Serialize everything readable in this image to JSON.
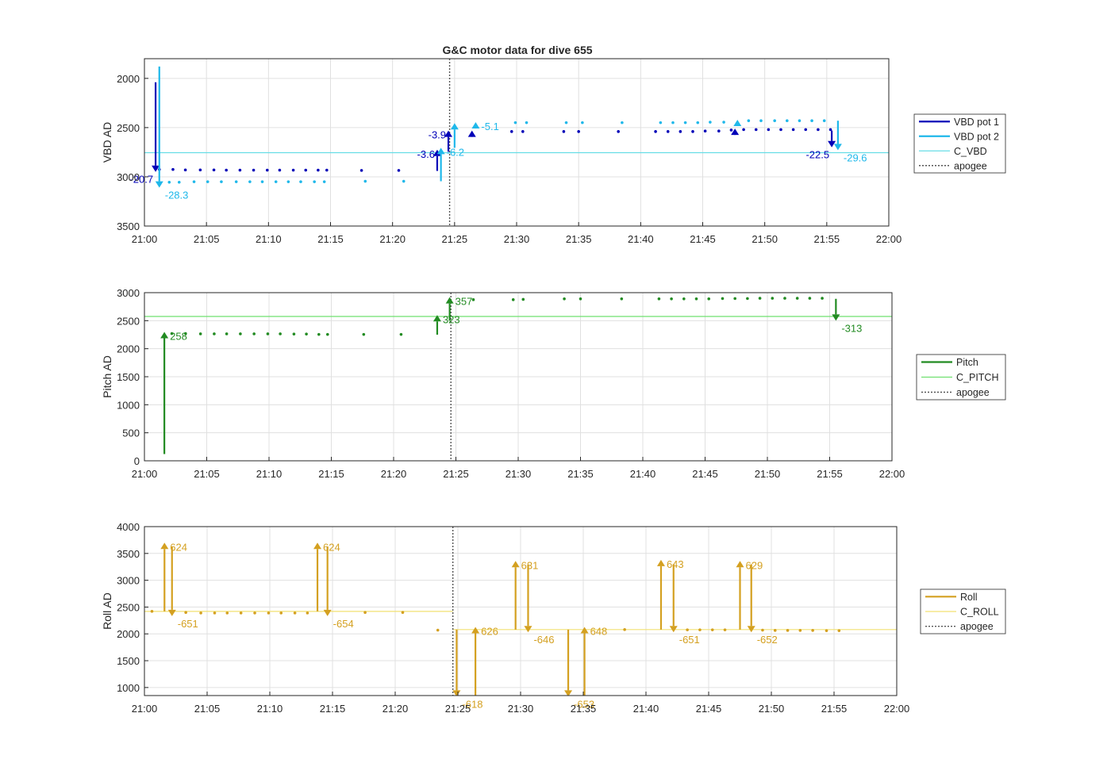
{
  "title": "G&C motor data for dive 655",
  "colors": {
    "vbd_pot1": "#0000b8",
    "vbd_pot2": "#1fb8ea",
    "c_vbd": "#66dde6",
    "pitch": "#228b22",
    "c_pitch": "#6fe06f",
    "roll": "#d4a020",
    "c_roll": "#f2e070",
    "apogee": "#555555",
    "grid": "#e0e0e0",
    "axis": "#262626"
  },
  "chart_data": [
    {
      "type": "scatter",
      "ylabel": "VBD AD",
      "xlim": [
        "21:00",
        "22:00"
      ],
      "ylim": [
        3500,
        1800
      ],
      "y_reversed": true,
      "xticks": [
        "21:00",
        "21:05",
        "21:10",
        "21:15",
        "21:20",
        "21:25",
        "21:30",
        "21:35",
        "21:40",
        "21:45",
        "21:50",
        "21:55",
        "22:00"
      ],
      "yticks": [
        2000,
        2500,
        3000,
        3500
      ],
      "grid": true,
      "legend_placement": "outside-right",
      "legend": [
        "VBD pot 1",
        "VBD pot 2",
        "C_VBD",
        "apogee"
      ],
      "apogee_time": "21:24.6",
      "reference_lines": [
        {
          "name": "C_VBD",
          "value": 2755
        }
      ],
      "series": [
        {
          "name": "VBD pot 1",
          "color_key": "vbd_pot1",
          "points": [
            [
              "21:01.2",
              2925
            ],
            [
              "21:02.3",
              2925
            ],
            [
              "21:03.3",
              2930
            ],
            [
              "21:04.5",
              2930
            ],
            [
              "21:05.6",
              2930
            ],
            [
              "21:06.6",
              2932
            ],
            [
              "21:07.7",
              2932
            ],
            [
              "21:08.8",
              2932
            ],
            [
              "21:09.9",
              2932
            ],
            [
              "21:10.9",
              2932
            ],
            [
              "21:12.0",
              2932
            ],
            [
              "21:13.0",
              2932
            ],
            [
              "21:14.0",
              2932
            ],
            [
              "21:14.7",
              2932
            ],
            [
              "21:17.5",
              2935
            ],
            [
              "21:20.5",
              2935
            ],
            [
              "21:29.6",
              2540
            ],
            [
              "21:30.5",
              2540
            ],
            [
              "21:33.8",
              2540
            ],
            [
              "21:35.0",
              2540
            ],
            [
              "21:38.2",
              2540
            ],
            [
              "21:41.2",
              2540
            ],
            [
              "21:42.2",
              2540
            ],
            [
              "21:43.2",
              2540
            ],
            [
              "21:44.2",
              2540
            ],
            [
              "21:45.2",
              2535
            ],
            [
              "21:46.3",
              2535
            ],
            [
              "21:47.3",
              2525
            ],
            [
              "21:48.3",
              2520
            ],
            [
              "21:49.3",
              2520
            ],
            [
              "21:50.3",
              2520
            ],
            [
              "21:51.3",
              2520
            ],
            [
              "21:52.3",
              2520
            ],
            [
              "21:53.3",
              2520
            ],
            [
              "21:54.3",
              2520
            ],
            [
              "21:55.3",
              2520
            ]
          ],
          "moves": [
            {
              "t": "21:00.9",
              "from": 2040,
              "to": 2950,
              "label": "-20.7"
            },
            {
              "t": "21:23.6",
              "from": 2940,
              "to": 2725,
              "label": "-3.6"
            },
            {
              "t": "21:24.5",
              "from": 2745,
              "to": 2530,
              "label": "-3.9"
            },
            {
              "t": "21:26.4",
              "from": 2590,
              "to": 2530,
              "label": ""
            },
            {
              "t": "21:47.6",
              "from": 2560,
              "to": 2510,
              "label": ""
            },
            {
              "t": "21:55.4",
              "from": 2530,
              "to": 2700,
              "label": "-22.5"
            }
          ]
        },
        {
          "name": "VBD pot 2",
          "color_key": "vbd_pot2",
          "points": [
            [
              "21:02.0",
              3055
            ],
            [
              "21:02.8",
              3055
            ],
            [
              "21:04.0",
              3050
            ],
            [
              "21:05.1",
              3050
            ],
            [
              "21:06.2",
              3050
            ],
            [
              "21:07.4",
              3050
            ],
            [
              "21:08.5",
              3050
            ],
            [
              "21:09.5",
              3050
            ],
            [
              "21:10.6",
              3050
            ],
            [
              "21:11.6",
              3050
            ],
            [
              "21:12.6",
              3050
            ],
            [
              "21:13.7",
              3050
            ],
            [
              "21:14.5",
              3050
            ],
            [
              "21:17.8",
              3045
            ],
            [
              "21:20.9",
              3045
            ],
            [
              "21:29.9",
              2450
            ],
            [
              "21:30.8",
              2450
            ],
            [
              "21:34.0",
              2450
            ],
            [
              "21:35.3",
              2450
            ],
            [
              "21:38.5",
              2450
            ],
            [
              "21:41.6",
              2450
            ],
            [
              "21:42.6",
              2450
            ],
            [
              "21:43.6",
              2450
            ],
            [
              "21:44.6",
              2450
            ],
            [
              "21:45.6",
              2445
            ],
            [
              "21:46.7",
              2445
            ],
            [
              "21:48.7",
              2430
            ],
            [
              "21:49.7",
              2430
            ],
            [
              "21:50.8",
              2430
            ],
            [
              "21:51.8",
              2430
            ],
            [
              "21:52.8",
              2430
            ],
            [
              "21:53.8",
              2430
            ],
            [
              "21:54.8",
              2430
            ]
          ],
          "moves": [
            {
              "t": "21:01.2",
              "from": 1880,
              "to": 3110,
              "label": "-28.3"
            },
            {
              "t": "21:23.9",
              "from": 3045,
              "to": 2705,
              "label": "-6.2"
            },
            {
              "t": "21:25.0",
              "from": 2705,
              "to": 2455,
              "label": ""
            },
            {
              "t": "21:26.7",
              "from": 2490,
              "to": 2445,
              "label": "-5.1"
            },
            {
              "t": "21:47.8",
              "from": 2450,
              "to": 2420,
              "label": ""
            },
            {
              "t": "21:55.9",
              "from": 2430,
              "to": 2730,
              "label": "-29.6"
            }
          ]
        }
      ]
    },
    {
      "type": "scatter",
      "ylabel": "Pitch AD",
      "xlim": [
        "21:00",
        "22:00"
      ],
      "ylim": [
        0,
        3000
      ],
      "xticks": [
        "21:00",
        "21:05",
        "21:10",
        "21:15",
        "21:20",
        "21:25",
        "21:30",
        "21:35",
        "21:40",
        "21:45",
        "21:50",
        "21:55",
        "22:00"
      ],
      "yticks": [
        0,
        500,
        1000,
        1500,
        2000,
        2500,
        3000
      ],
      "grid": true,
      "legend_placement": "outside-right",
      "legend": [
        "Pitch",
        "C_PITCH",
        "apogee"
      ],
      "apogee_time": "21:24.6",
      "reference_lines": [
        {
          "name": "C_PITCH",
          "value": 2575
        }
      ],
      "series": [
        {
          "name": "Pitch",
          "color_key": "pitch",
          "points": [
            [
              "21:02.2",
              2270
            ],
            [
              "21:03.3",
              2270
            ],
            [
              "21:04.5",
              2265
            ],
            [
              "21:05.6",
              2265
            ],
            [
              "21:06.6",
              2265
            ],
            [
              "21:07.7",
              2265
            ],
            [
              "21:08.8",
              2265
            ],
            [
              "21:09.9",
              2265
            ],
            [
              "21:10.9",
              2265
            ],
            [
              "21:12.0",
              2262
            ],
            [
              "21:13.0",
              2262
            ],
            [
              "21:14.0",
              2255
            ],
            [
              "21:14.7",
              2255
            ],
            [
              "21:17.6",
              2255
            ],
            [
              "21:20.6",
              2255
            ],
            [
              "21:26.4",
              2875
            ],
            [
              "21:29.6",
              2875
            ],
            [
              "21:30.4",
              2880
            ],
            [
              "21:33.7",
              2890
            ],
            [
              "21:35.0",
              2890
            ],
            [
              "21:38.3",
              2890
            ],
            [
              "21:41.3",
              2890
            ],
            [
              "21:42.3",
              2890
            ],
            [
              "21:43.3",
              2890
            ],
            [
              "21:44.3",
              2890
            ],
            [
              "21:45.3",
              2890
            ],
            [
              "21:46.4",
              2895
            ],
            [
              "21:47.4",
              2895
            ],
            [
              "21:48.4",
              2895
            ],
            [
              "21:49.4",
              2900
            ],
            [
              "21:50.4",
              2900
            ],
            [
              "21:51.4",
              2900
            ],
            [
              "21:52.4",
              2900
            ],
            [
              "21:53.4",
              2900
            ],
            [
              "21:54.4",
              2900
            ]
          ],
          "moves": [
            {
              "t": "21:01.6",
              "from": 120,
              "to": 2300,
              "label": "258"
            },
            {
              "t": "21:23.5",
              "from": 2250,
              "to": 2600,
              "label": "323"
            },
            {
              "t": "21:24.5",
              "from": 2500,
              "to": 2920,
              "label": "357"
            },
            {
              "t": "21:55.5",
              "from": 2890,
              "to": 2500,
              "label": "-313"
            }
          ]
        }
      ]
    },
    {
      "type": "scatter",
      "ylabel": "Roll AD",
      "xlim": [
        "21:00",
        "22:00"
      ],
      "ylim": [
        850,
        4000
      ],
      "xticks": [
        "21:00",
        "21:05",
        "21:10",
        "21:15",
        "21:20",
        "21:25",
        "21:30",
        "21:35",
        "21:40",
        "21:45",
        "21:50",
        "21:55",
        "22:00"
      ],
      "yticks": [
        1000,
        1500,
        2000,
        2500,
        3000,
        3500,
        4000
      ],
      "grid": true,
      "legend_placement": "outside-right",
      "legend": [
        "Roll",
        "C_ROLL",
        "apogee"
      ],
      "apogee_time": "21:24.6",
      "reference_lines": [
        {
          "name": "C_ROLL",
          "value": 2420,
          "from": "21:00",
          "to": "21:24.6"
        },
        {
          "name": "C_ROLL",
          "value": 2080,
          "from": "21:24.6",
          "to": "22:00"
        }
      ],
      "series": [
        {
          "name": "Roll",
          "color_key": "roll",
          "points": [
            [
              "21:00.6",
              2420
            ],
            [
              "21:03.3",
              2400
            ],
            [
              "21:04.5",
              2390
            ],
            [
              "21:05.6",
              2390
            ],
            [
              "21:06.6",
              2390
            ],
            [
              "21:07.7",
              2390
            ],
            [
              "21:08.8",
              2390
            ],
            [
              "21:09.9",
              2390
            ],
            [
              "21:10.9",
              2390
            ],
            [
              "21:12.0",
              2390
            ],
            [
              "21:13.0",
              2390
            ],
            [
              "21:17.6",
              2400
            ],
            [
              "21:20.6",
              2400
            ],
            [
              "21:23.4",
              2070
            ],
            [
              "21:38.3",
              2080
            ],
            [
              "21:43.3",
              2075
            ],
            [
              "21:44.3",
              2075
            ],
            [
              "21:45.3",
              2075
            ],
            [
              "21:46.3",
              2075
            ],
            [
              "21:49.3",
              2070
            ],
            [
              "21:50.3",
              2065
            ],
            [
              "21:51.3",
              2065
            ],
            [
              "21:52.3",
              2065
            ],
            [
              "21:53.3",
              2065
            ],
            [
              "21:54.4",
              2060
            ],
            [
              "21:55.4",
              2060
            ]
          ],
          "moves": [
            {
              "t": "21:01.6",
              "from": 2420,
              "to": 3700,
              "label": "624"
            },
            {
              "t": "21:02.2",
              "from": 3630,
              "to": 2330,
              "label": "-651"
            },
            {
              "t": "21:13.8",
              "from": 2420,
              "to": 3700,
              "label": "624"
            },
            {
              "t": "21:14.6",
              "from": 3630,
              "to": 2330,
              "label": "-654"
            },
            {
              "t": "21:24.9",
              "from": 2080,
              "to": 830,
              "label": "-618"
            },
            {
              "t": "21:26.4",
              "from": 830,
              "to": 2130,
              "label": "626"
            },
            {
              "t": "21:29.6",
              "from": 2080,
              "to": 3360,
              "label": "631"
            },
            {
              "t": "21:30.6",
              "from": 3300,
              "to": 2030,
              "label": "-646"
            },
            {
              "t": "21:33.8",
              "from": 2080,
              "to": 830,
              "label": "-653"
            },
            {
              "t": "21:35.1",
              "from": 830,
              "to": 2130,
              "label": "648"
            },
            {
              "t": "21:41.2",
              "from": 2080,
              "to": 3380,
              "label": "643"
            },
            {
              "t": "21:42.2",
              "from": 3300,
              "to": 2030,
              "label": "-651"
            },
            {
              "t": "21:47.5",
              "from": 2080,
              "to": 3360,
              "label": "629"
            },
            {
              "t": "21:48.4",
              "from": 3300,
              "to": 2030,
              "label": "-652"
            }
          ]
        }
      ]
    }
  ]
}
